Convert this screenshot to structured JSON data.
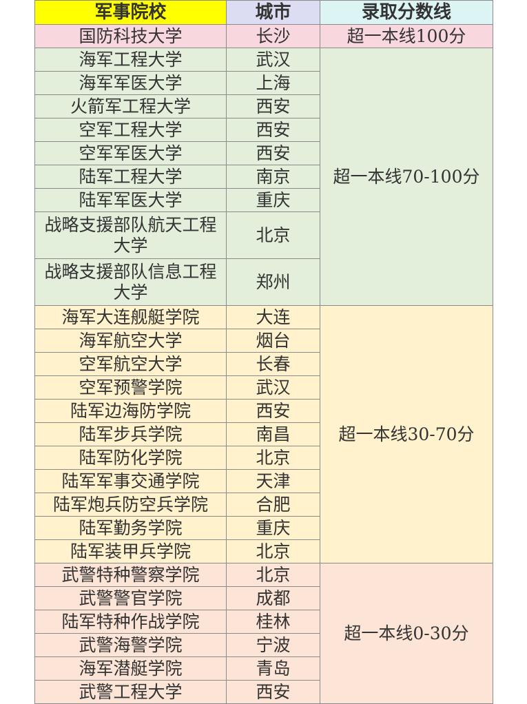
{
  "table": {
    "header": [
      "军事院校",
      "城市",
      "录取分数线"
    ],
    "groups": [
      {
        "score": "超一本线100分",
        "rows": [
          {
            "school": "国防科技大学",
            "city": "长沙"
          }
        ]
      },
      {
        "score": "超一本线70-100分",
        "rows": [
          {
            "school": "海军工程大学",
            "city": "武汉"
          },
          {
            "school": "海军军医大学",
            "city": "上海"
          },
          {
            "school": "火箭军工程大学",
            "city": "西安"
          },
          {
            "school": "空军工程大学",
            "city": "西安"
          },
          {
            "school": "空军军医大学",
            "city": "西安"
          },
          {
            "school": "陆军工程大学",
            "city": "南京"
          },
          {
            "school": "陆军军医大学",
            "city": "重庆"
          },
          {
            "school": "战略支援部队航天工程大学",
            "city": "北京"
          },
          {
            "school": "战略支援部队信息工程大学",
            "city": "郑州"
          }
        ]
      },
      {
        "score": "超一本线30-70分",
        "rows": [
          {
            "school": "海军大连舰艇学院",
            "city": "大连"
          },
          {
            "school": "海军航空大学",
            "city": "烟台"
          },
          {
            "school": "空军航空大学",
            "city": "长春"
          },
          {
            "school": "空军预警学院",
            "city": "武汉"
          },
          {
            "school": "陆军边海防学院",
            "city": "西安"
          },
          {
            "school": "陆军步兵学院",
            "city": "南昌"
          },
          {
            "school": "陆军防化学院",
            "city": "北京"
          },
          {
            "school": "陆军军事交通学院",
            "city": "天津"
          },
          {
            "school": "陆军炮兵防空兵学院",
            "city": "合肥"
          },
          {
            "school": "陆军勤务学院",
            "city": "重庆"
          },
          {
            "school": "陆军装甲兵学院",
            "city": "北京"
          }
        ]
      },
      {
        "score": "超一本线0-30分",
        "rows": [
          {
            "school": "武警特种警察学院",
            "city": "北京"
          },
          {
            "school": "武警警官学院",
            "city": "成都"
          },
          {
            "school": "陆军特种作战学院",
            "city": "桂林"
          },
          {
            "school": "武警海警学院",
            "city": "宁波"
          },
          {
            "school": "海军潜艇学院",
            "city": "青岛"
          },
          {
            "school": "武警工程大学",
            "city": "西安"
          }
        ]
      }
    ]
  }
}
